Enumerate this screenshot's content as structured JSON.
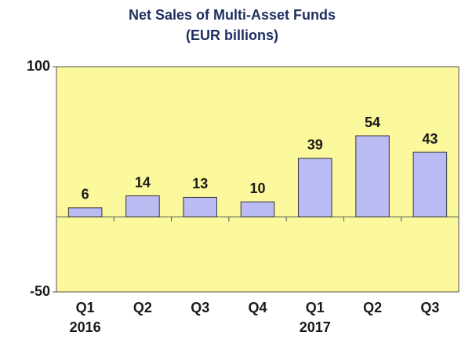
{
  "chart_data": {
    "type": "bar",
    "title": "Net Sales of Multi-Asset Funds",
    "subtitle": "(EUR billions)",
    "categories": [
      "Q1",
      "Q2",
      "Q3",
      "Q4",
      "Q1",
      "Q2",
      "Q3"
    ],
    "category_years": [
      "2016",
      null,
      null,
      null,
      "2017",
      null,
      null
    ],
    "values": [
      6,
      14,
      13,
      10,
      39,
      54,
      43
    ],
    "color": "#bcbcf4",
    "ylim": [
      -50,
      100
    ],
    "yticks": [
      -50,
      100
    ],
    "grid": false
  }
}
